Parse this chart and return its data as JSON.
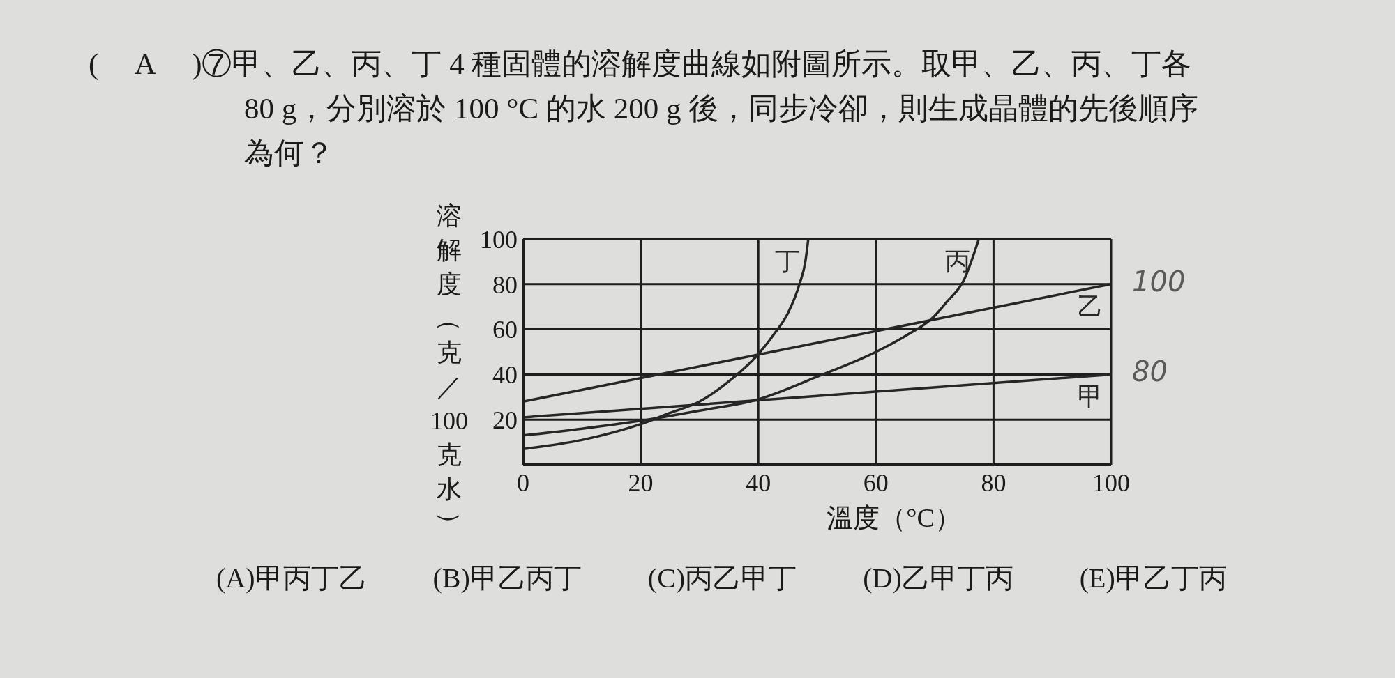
{
  "chart_data": {
    "type": "line",
    "title": "(　 A 　)⑦甲、乙、丙、丁 4 種固體的溶解度曲線如附圖所示。取甲、乙、丙、丁各 80 g，分別溶於 100 °C 的水 200 g 後，同步冷卻，則生成晶體的先後順序為何？",
    "xlabel": "溫度（°C）",
    "ylabel": "溶解度（克／100克水）",
    "xlim": [
      0,
      100
    ],
    "ylim": [
      0,
      100
    ],
    "xticks": [
      0,
      20,
      40,
      60,
      80,
      100
    ],
    "yticks": [
      {
        "value": 0,
        "label": null
      },
      20,
      40,
      60,
      80,
      100
    ],
    "grid": true,
    "series": [
      {
        "name": "甲",
        "color": "#262626",
        "x": [
          0,
          50,
          100
        ],
        "values": [
          21,
          30.5,
          40
        ]
      },
      {
        "name": "乙",
        "color": "#262626",
        "x": [
          0,
          50,
          100
        ],
        "values": [
          28,
          54,
          80
        ]
      },
      {
        "name": "丙",
        "color": "#262626",
        "x": [
          0,
          10,
          20,
          30,
          40,
          50,
          60,
          65,
          70,
          72,
          75,
          77.5
        ],
        "values": [
          13,
          16,
          19.5,
          24,
          29,
          39,
          50,
          57,
          66,
          72,
          82,
          100
        ]
      },
      {
        "name": "丁",
        "color": "#262626",
        "x": [
          0,
          10,
          20,
          25,
          30,
          35,
          40,
          43,
          45,
          47,
          48,
          48.5
        ],
        "values": [
          7,
          11,
          18,
          23,
          28,
          37,
          49,
          59,
          67,
          80,
          90,
          100
        ]
      }
    ],
    "annotations": [
      {
        "text": "100",
        "x": 100,
        "y": 80
      },
      {
        "text": "80",
        "x": 100,
        "y": 40
      },
      "(A)甲丙丁乙",
      "(B)甲乙丙丁",
      "(C)丙乙甲丁",
      "(D)乙甲丁丙",
      "(E)甲乙丁丙"
    ]
  }
}
